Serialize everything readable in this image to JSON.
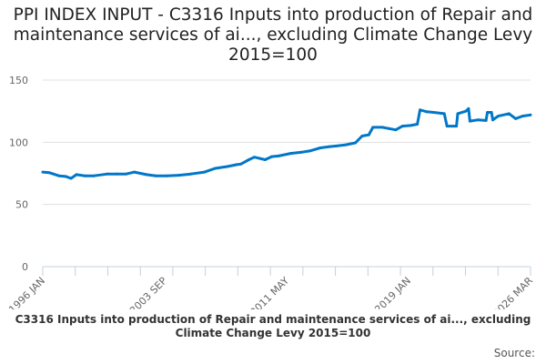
{
  "chart_data": {
    "type": "line",
    "title": "PPI INDEX INPUT - C3316 Inputs into production of Repair and maintenance services of ai..., excluding Climate Change Levy 2015=100",
    "xlabel": "C3316 Inputs into production of Repair and maintenance services of ai..., excluding Climate Change Levy 2015=100",
    "ylabel": "",
    "source_label": "Source:",
    "ylim": [
      0,
      150
    ],
    "yticks": [
      0,
      50,
      100,
      150
    ],
    "xlim": [
      "1996-01",
      "2026-03"
    ],
    "xticks": [
      "1996 JAN",
      "2003 SEP",
      "2011 MAY",
      "2019 JAN",
      "2026 MAR"
    ],
    "grid": "horizontal",
    "color": "#0077c8",
    "series": [
      {
        "x": [
          "1996-01",
          "1996-06",
          "1997-01",
          "1997-06",
          "1997-10",
          "1998-02",
          "1998-08",
          "1999-03",
          "2000-01",
          "2000-08",
          "2001-03",
          "2001-09",
          "2002-06",
          "2003-01",
          "2003-09",
          "2004-06",
          "2005-03",
          "2006-01",
          "2006-09",
          "2007-06",
          "2008-01",
          "2008-04",
          "2008-10",
          "2009-02",
          "2009-06",
          "2009-10",
          "2010-03",
          "2010-08",
          "2011-05",
          "2012-01",
          "2012-07",
          "2013-03",
          "2013-10",
          "2014-03",
          "2014-10",
          "2015-05",
          "2015-10",
          "2016-03",
          "2016-06",
          "2017-01",
          "2017-06",
          "2017-11",
          "2018-04",
          "2018-10",
          "2019-03",
          "2019-05",
          "2019-10",
          "2020-03",
          "2020-11",
          "2021-01",
          "2021-08",
          "2021-09",
          "2022-03",
          "2022-05",
          "2022-06",
          "2022-12",
          "2023-06",
          "2023-07",
          "2023-10",
          "2023-11",
          "2024-03",
          "2024-11",
          "2025-04",
          "2025-09",
          "2026-03"
        ],
        "y": [
          76,
          75.5,
          73,
          72.5,
          71,
          74,
          73,
          73,
          74.5,
          74.5,
          74.5,
          76,
          74,
          73,
          73,
          73.5,
          74.5,
          76,
          79,
          80.5,
          82,
          82.5,
          86,
          88,
          87,
          86,
          88.5,
          89,
          91,
          92,
          93,
          95.5,
          96.5,
          97,
          98,
          99.5,
          105,
          106,
          112,
          112,
          111,
          110,
          113,
          113.5,
          114.5,
          126,
          124.5,
          124,
          123,
          113,
          113,
          123,
          125,
          127,
          117,
          118,
          117.5,
          124,
          124,
          118,
          121,
          123,
          119,
          121,
          122
        ]
      }
    ]
  }
}
